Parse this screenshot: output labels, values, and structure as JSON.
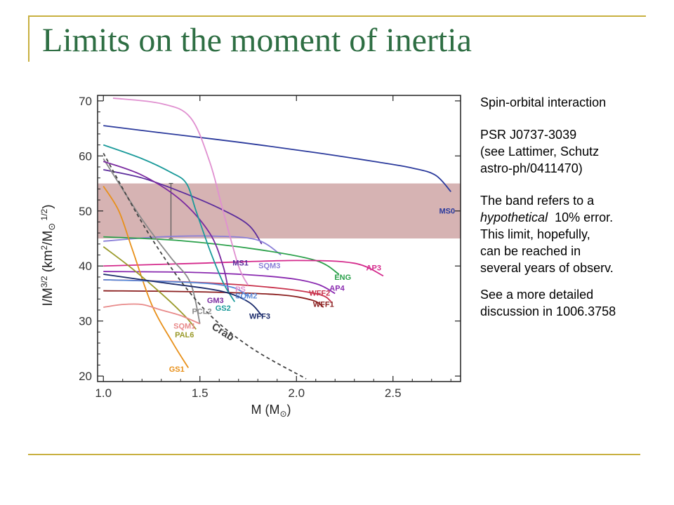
{
  "slide": {
    "title": "Limits on the moment of inertia"
  },
  "notes": {
    "line1": "Spin-orbital interaction",
    "line2": "PSR J0737-3039",
    "line3": "(see Lattimer, Schutz",
    "line4": "astro-ph/0411470)",
    "line5": "The band refers to a",
    "line6_em": "hypothetical",
    "line6_rest": "  10% error.",
    "line7": "This limit, hopefully,",
    "line8": "can be reached in",
    "line9": "several years of observ.",
    "line10": "See a more detailed",
    "line11": "discussion in 1006.3758"
  },
  "chart_data": {
    "type": "line",
    "xlabel": "M (M⊙)",
    "ylabel": "I/M3/2 (km2/M⊙1/2)",
    "xlim": [
      0.97,
      2.85
    ],
    "ylim": [
      19,
      71
    ],
    "xticks": [
      1.0,
      1.5,
      2.0,
      2.5
    ],
    "xtick_labels": [
      "1.0",
      "1.5",
      "2.0",
      "2.5"
    ],
    "yticks": [
      20,
      30,
      40,
      50,
      60,
      70
    ],
    "ytick_labels": [
      "20",
      "30",
      "40",
      "50",
      "60",
      "70"
    ],
    "band": {
      "y_min": 45,
      "y_max": 55,
      "color": "#d6b3b3"
    },
    "error_bar": {
      "x": 1.35,
      "y_min": 45,
      "y_max": 55
    },
    "series": [
      {
        "name": "MS0",
        "color": "#2b3a9c",
        "dashed": false,
        "label_at": [
          2.78,
          49.5
        ],
        "x": [
          1.0,
          1.3,
          1.7,
          2.1,
          2.4,
          2.6,
          2.72,
          2.8
        ],
        "y": [
          65.5,
          64.2,
          62.5,
          60.6,
          59.0,
          57.8,
          56.5,
          53.5
        ]
      },
      {
        "name": "MS1",
        "color": "#5b2c9c",
        "dashed": false,
        "label_at": [
          1.71,
          40.1
        ],
        "x": [
          1.0,
          1.2,
          1.4,
          1.6,
          1.75,
          1.82
        ],
        "y": [
          57.5,
          56.0,
          53.5,
          50.5,
          47.5,
          44.0
        ]
      },
      {
        "name": "SQM3",
        "color": "#8a7fd8",
        "dashed": false,
        "label_at": [
          1.86,
          39.6
        ],
        "x": [
          1.0,
          1.3,
          1.6,
          1.8,
          1.92
        ],
        "y": [
          44.5,
          45.3,
          45.4,
          44.7,
          42.0
        ]
      },
      {
        "name": "ENG",
        "color": "#2aa04a",
        "dashed": false,
        "label_at": [
          2.24,
          37.5
        ],
        "x": [
          1.0,
          1.4,
          1.8,
          2.1,
          2.22
        ],
        "y": [
          45.3,
          44.6,
          43.0,
          41.0,
          38.5
        ]
      },
      {
        "name": "AP3",
        "color": "#d42a8c",
        "dashed": false,
        "label_at": [
          2.4,
          39.2
        ],
        "x": [
          1.0,
          1.5,
          2.0,
          2.3,
          2.45
        ],
        "y": [
          40.0,
          40.5,
          41.0,
          40.5,
          38.2
        ]
      },
      {
        "name": "AP4",
        "color": "#8a2ab0",
        "dashed": false,
        "label_at": [
          2.21,
          35.5
        ],
        "x": [
          1.0,
          1.5,
          1.9,
          2.1,
          2.2
        ],
        "y": [
          39.0,
          38.8,
          38.0,
          36.8,
          35.0
        ]
      },
      {
        "name": "WFF2",
        "color": "#c8304a",
        "dashed": false,
        "label_at": [
          2.12,
          34.6
        ],
        "x": [
          1.0,
          1.5,
          1.9,
          2.12,
          2.18
        ],
        "y": [
          37.5,
          37.0,
          36.0,
          34.8,
          33.5
        ]
      },
      {
        "name": "WFF1",
        "color": "#8a1e1e",
        "dashed": false,
        "label_at": [
          2.14,
          32.6
        ],
        "x": [
          1.0,
          1.5,
          1.9,
          2.08,
          2.14
        ],
        "y": [
          35.5,
          35.3,
          34.8,
          33.8,
          32.5
        ]
      },
      {
        "name": "GS1",
        "color": "#e8901a",
        "dashed": false,
        "label_at": [
          1.38,
          20.8
        ],
        "x": [
          1.0,
          1.08,
          1.15,
          1.25,
          1.36,
          1.44
        ],
        "y": [
          54.5,
          50.0,
          43.0,
          33.0,
          26.0,
          21.5
        ]
      },
      {
        "name": "PAL6",
        "color": "#9a9a2a",
        "dashed": false,
        "label_at": [
          1.42,
          27.0
        ],
        "x": [
          1.0,
          1.15,
          1.3,
          1.42,
          1.48
        ],
        "y": [
          43.5,
          39.5,
          35.0,
          31.0,
          28.5
        ]
      },
      {
        "name": "PCL2",
        "color": "#8a8a8a",
        "dashed": false,
        "label_at": [
          1.51,
          31.3
        ],
        "x": [
          1.0,
          1.2,
          1.35,
          1.45,
          1.5
        ],
        "y": [
          59.5,
          48.5,
          41.5,
          37.0,
          29.5
        ]
      },
      {
        "name": "SQM1",
        "color": "#e88a8a",
        "dashed": false,
        "label_at": [
          1.42,
          28.6
        ],
        "x": [
          1.0,
          1.1,
          1.2,
          1.3,
          1.4,
          1.5
        ],
        "y": [
          32.5,
          33.0,
          33.0,
          32.0,
          31.0,
          29.5
        ]
      },
      {
        "name": "GM3",
        "color": "#7a2aa0",
        "dashed": false,
        "label_at": [
          1.58,
          33.3
        ],
        "x": [
          1.0,
          1.2,
          1.4,
          1.55,
          1.62,
          1.65
        ],
        "y": [
          59.0,
          56.5,
          52.0,
          46.0,
          40.0,
          35.0
        ]
      },
      {
        "name": "GS2",
        "color": "#1a9a9a",
        "dashed": false,
        "label_at": [
          1.62,
          31.9
        ],
        "x": [
          1.0,
          1.2,
          1.35,
          1.43,
          1.48,
          1.55,
          1.62,
          1.68
        ],
        "y": [
          62.0,
          59.5,
          57.0,
          55.0,
          50.0,
          43.0,
          37.0,
          33.5
        ]
      },
      {
        "name": "PS",
        "color": "#e090d0",
        "dashed": false,
        "label_at": [
          1.71,
          35.3
        ],
        "x": [
          1.05,
          1.3,
          1.45,
          1.55,
          1.62,
          1.7,
          1.75
        ],
        "y": [
          70.5,
          69.5,
          67.0,
          59.0,
          50.0,
          40.0,
          36.5
        ]
      },
      {
        "name": "SQM2",
        "color": "#5a8ad8",
        "dashed": false,
        "label_at": [
          1.74,
          34.1
        ],
        "x": [
          1.0,
          1.3,
          1.55,
          1.68,
          1.75
        ],
        "y": [
          37.5,
          37.2,
          36.8,
          36.0,
          34.5
        ]
      },
      {
        "name": "WFF3",
        "color": "#1a2a6a",
        "dashed": false,
        "label_at": [
          1.81,
          30.4
        ],
        "x": [
          1.0,
          1.3,
          1.6,
          1.75,
          1.82
        ],
        "y": [
          38.5,
          37.0,
          35.5,
          33.5,
          31.0
        ]
      },
      {
        "name": "Crab",
        "color": "#444444",
        "dashed": true,
        "label_at": [
          1.61,
          27.5
        ],
        "x": [
          1.0,
          1.25,
          1.5,
          1.75,
          2.05
        ],
        "y": [
          60.5,
          45.0,
          33.0,
          25.5,
          19.5
        ]
      }
    ]
  }
}
